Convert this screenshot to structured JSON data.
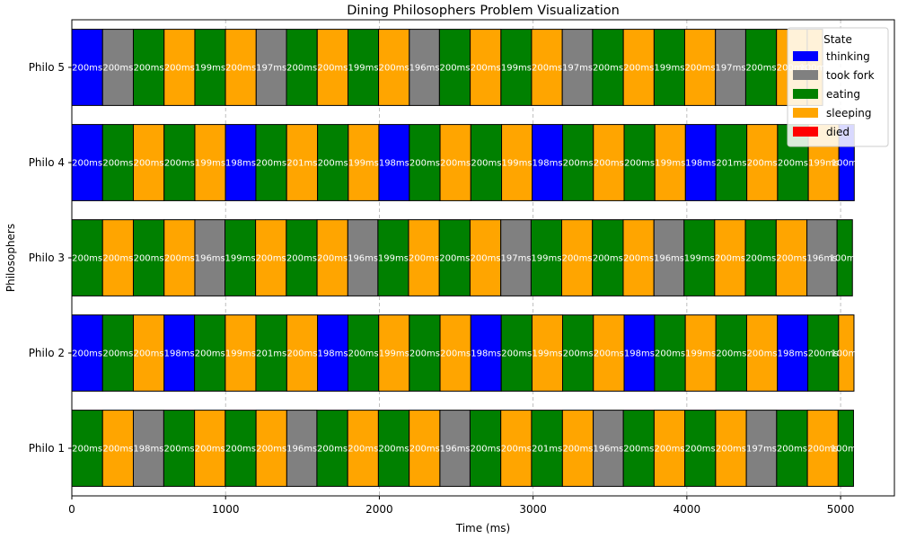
{
  "chart_data": {
    "type": "bar",
    "orientation": "horizontal-timeline",
    "title": "Dining Philosophers Problem Visualization",
    "xlabel": "Time (ms)",
    "ylabel": "Philosophers",
    "xlim": [
      0,
      5350
    ],
    "xticks": [
      0,
      1000,
      2000,
      3000,
      4000,
      5000
    ],
    "grid": "x",
    "legend": {
      "title": "State",
      "placement": "top-right",
      "entries": [
        {
          "state": "thinking",
          "label": "thinking",
          "color": "#0000ff"
        },
        {
          "state": "took fork",
          "label": "took fork",
          "color": "#808080"
        },
        {
          "state": "eating",
          "label": "eating",
          "color": "#008000"
        },
        {
          "state": "sleeping",
          "label": "sleeping",
          "color": "#ffa500"
        },
        {
          "state": "died",
          "label": "died",
          "color": "#ff0000"
        }
      ]
    },
    "series": [
      {
        "name": "Philo 5",
        "segments": [
          {
            "start": 0,
            "duration": 200,
            "state": "thinking",
            "label": "200ms"
          },
          {
            "start": 200,
            "duration": 200,
            "state": "took fork",
            "label": "200ms"
          },
          {
            "start": 400,
            "duration": 200,
            "state": "eating",
            "label": "200ms"
          },
          {
            "start": 600,
            "duration": 200,
            "state": "sleeping",
            "label": "200ms"
          },
          {
            "start": 800,
            "duration": 199,
            "state": "eating",
            "label": "199ms"
          },
          {
            "start": 999,
            "duration": 200,
            "state": "sleeping",
            "label": "200ms"
          },
          {
            "start": 1199,
            "duration": 197,
            "state": "took fork",
            "label": "197ms"
          },
          {
            "start": 1396,
            "duration": 200,
            "state": "eating",
            "label": "200ms"
          },
          {
            "start": 1596,
            "duration": 200,
            "state": "sleeping",
            "label": "200ms"
          },
          {
            "start": 1796,
            "duration": 199,
            "state": "eating",
            "label": "199ms"
          },
          {
            "start": 1995,
            "duration": 200,
            "state": "sleeping",
            "label": "200ms"
          },
          {
            "start": 2195,
            "duration": 196,
            "state": "took fork",
            "label": "196ms"
          },
          {
            "start": 2391,
            "duration": 200,
            "state": "eating",
            "label": "200ms"
          },
          {
            "start": 2591,
            "duration": 200,
            "state": "sleeping",
            "label": "200ms"
          },
          {
            "start": 2791,
            "duration": 199,
            "state": "eating",
            "label": "199ms"
          },
          {
            "start": 2990,
            "duration": 200,
            "state": "sleeping",
            "label": "200ms"
          },
          {
            "start": 3190,
            "duration": 197,
            "state": "took fork",
            "label": "197ms"
          },
          {
            "start": 3387,
            "duration": 200,
            "state": "eating",
            "label": "200ms"
          },
          {
            "start": 3587,
            "duration": 200,
            "state": "sleeping",
            "label": "200ms"
          },
          {
            "start": 3787,
            "duration": 199,
            "state": "eating",
            "label": "199ms"
          },
          {
            "start": 3986,
            "duration": 200,
            "state": "sleeping",
            "label": "200ms"
          },
          {
            "start": 4186,
            "duration": 197,
            "state": "took fork",
            "label": "197ms"
          },
          {
            "start": 4383,
            "duration": 200,
            "state": "eating",
            "label": "200ms"
          },
          {
            "start": 4583,
            "duration": 200,
            "state": "sleeping",
            "label": "200ms"
          },
          {
            "start": 4783,
            "duration": 100,
            "state": "sleeping",
            "label": "100ms"
          }
        ]
      },
      {
        "name": "Philo 4",
        "segments": [
          {
            "start": 0,
            "duration": 200,
            "state": "thinking",
            "label": "200ms"
          },
          {
            "start": 200,
            "duration": 200,
            "state": "eating",
            "label": "200ms"
          },
          {
            "start": 400,
            "duration": 200,
            "state": "sleeping",
            "label": "200ms"
          },
          {
            "start": 600,
            "duration": 200,
            "state": "eating",
            "label": "200ms"
          },
          {
            "start": 800,
            "duration": 199,
            "state": "sleeping",
            "label": "199ms"
          },
          {
            "start": 999,
            "duration": 198,
            "state": "thinking",
            "label": "198ms"
          },
          {
            "start": 1197,
            "duration": 200,
            "state": "eating",
            "label": "200ms"
          },
          {
            "start": 1397,
            "duration": 201,
            "state": "sleeping",
            "label": "201ms"
          },
          {
            "start": 1598,
            "duration": 200,
            "state": "eating",
            "label": "200ms"
          },
          {
            "start": 1798,
            "duration": 199,
            "state": "sleeping",
            "label": "199ms"
          },
          {
            "start": 1997,
            "duration": 198,
            "state": "thinking",
            "label": "198ms"
          },
          {
            "start": 2195,
            "duration": 200,
            "state": "eating",
            "label": "200ms"
          },
          {
            "start": 2395,
            "duration": 200,
            "state": "sleeping",
            "label": "200ms"
          },
          {
            "start": 2595,
            "duration": 200,
            "state": "eating",
            "label": "200ms"
          },
          {
            "start": 2795,
            "duration": 199,
            "state": "sleeping",
            "label": "199ms"
          },
          {
            "start": 2994,
            "duration": 198,
            "state": "thinking",
            "label": "198ms"
          },
          {
            "start": 3192,
            "duration": 200,
            "state": "eating",
            "label": "200ms"
          },
          {
            "start": 3392,
            "duration": 200,
            "state": "sleeping",
            "label": "200ms"
          },
          {
            "start": 3592,
            "duration": 200,
            "state": "eating",
            "label": "200ms"
          },
          {
            "start": 3792,
            "duration": 199,
            "state": "sleeping",
            "label": "199ms"
          },
          {
            "start": 3991,
            "duration": 198,
            "state": "thinking",
            "label": "198ms"
          },
          {
            "start": 4189,
            "duration": 201,
            "state": "eating",
            "label": "201ms"
          },
          {
            "start": 4390,
            "duration": 200,
            "state": "sleeping",
            "label": "200ms"
          },
          {
            "start": 4590,
            "duration": 200,
            "state": "eating",
            "label": "200ms"
          },
          {
            "start": 4790,
            "duration": 199,
            "state": "sleeping",
            "label": "199ms"
          },
          {
            "start": 4989,
            "duration": 100,
            "state": "thinking",
            "label": "100ms"
          }
        ]
      },
      {
        "name": "Philo 3",
        "segments": [
          {
            "start": 0,
            "duration": 200,
            "state": "eating",
            "label": "200ms"
          },
          {
            "start": 200,
            "duration": 200,
            "state": "sleeping",
            "label": "200ms"
          },
          {
            "start": 400,
            "duration": 200,
            "state": "eating",
            "label": "200ms"
          },
          {
            "start": 600,
            "duration": 200,
            "state": "sleeping",
            "label": "200ms"
          },
          {
            "start": 800,
            "duration": 196,
            "state": "took fork",
            "label": "196ms"
          },
          {
            "start": 996,
            "duration": 199,
            "state": "eating",
            "label": "199ms"
          },
          {
            "start": 1195,
            "duration": 200,
            "state": "sleeping",
            "label": "200ms"
          },
          {
            "start": 1395,
            "duration": 200,
            "state": "eating",
            "label": "200ms"
          },
          {
            "start": 1595,
            "duration": 200,
            "state": "sleeping",
            "label": "200ms"
          },
          {
            "start": 1795,
            "duration": 196,
            "state": "took fork",
            "label": "196ms"
          },
          {
            "start": 1991,
            "duration": 199,
            "state": "eating",
            "label": "199ms"
          },
          {
            "start": 2190,
            "duration": 200,
            "state": "sleeping",
            "label": "200ms"
          },
          {
            "start": 2390,
            "duration": 200,
            "state": "eating",
            "label": "200ms"
          },
          {
            "start": 2590,
            "duration": 200,
            "state": "sleeping",
            "label": "200ms"
          },
          {
            "start": 2790,
            "duration": 197,
            "state": "took fork",
            "label": "197ms"
          },
          {
            "start": 2987,
            "duration": 199,
            "state": "eating",
            "label": "199ms"
          },
          {
            "start": 3186,
            "duration": 200,
            "state": "sleeping",
            "label": "200ms"
          },
          {
            "start": 3386,
            "duration": 200,
            "state": "eating",
            "label": "200ms"
          },
          {
            "start": 3586,
            "duration": 200,
            "state": "sleeping",
            "label": "200ms"
          },
          {
            "start": 3786,
            "duration": 196,
            "state": "took fork",
            "label": "196ms"
          },
          {
            "start": 3982,
            "duration": 199,
            "state": "eating",
            "label": "199ms"
          },
          {
            "start": 4181,
            "duration": 200,
            "state": "sleeping",
            "label": "200ms"
          },
          {
            "start": 4381,
            "duration": 200,
            "state": "eating",
            "label": "200ms"
          },
          {
            "start": 4581,
            "duration": 200,
            "state": "sleeping",
            "label": "200ms"
          },
          {
            "start": 4781,
            "duration": 196,
            "state": "took fork",
            "label": "196ms"
          },
          {
            "start": 4977,
            "duration": 100,
            "state": "eating",
            "label": "100ms"
          }
        ]
      },
      {
        "name": "Philo 2",
        "segments": [
          {
            "start": 0,
            "duration": 200,
            "state": "thinking",
            "label": "200ms"
          },
          {
            "start": 200,
            "duration": 200,
            "state": "eating",
            "label": "200ms"
          },
          {
            "start": 400,
            "duration": 200,
            "state": "sleeping",
            "label": "200ms"
          },
          {
            "start": 600,
            "duration": 198,
            "state": "thinking",
            "label": "198ms"
          },
          {
            "start": 798,
            "duration": 200,
            "state": "eating",
            "label": "200ms"
          },
          {
            "start": 998,
            "duration": 199,
            "state": "sleeping",
            "label": "199ms"
          },
          {
            "start": 1197,
            "duration": 201,
            "state": "eating",
            "label": "201ms"
          },
          {
            "start": 1398,
            "duration": 200,
            "state": "sleeping",
            "label": "200ms"
          },
          {
            "start": 1598,
            "duration": 198,
            "state": "thinking",
            "label": "198ms"
          },
          {
            "start": 1796,
            "duration": 200,
            "state": "eating",
            "label": "200ms"
          },
          {
            "start": 1996,
            "duration": 199,
            "state": "sleeping",
            "label": "199ms"
          },
          {
            "start": 2195,
            "duration": 200,
            "state": "eating",
            "label": "200ms"
          },
          {
            "start": 2395,
            "duration": 200,
            "state": "sleeping",
            "label": "200ms"
          },
          {
            "start": 2595,
            "duration": 198,
            "state": "thinking",
            "label": "198ms"
          },
          {
            "start": 2793,
            "duration": 200,
            "state": "eating",
            "label": "200ms"
          },
          {
            "start": 2993,
            "duration": 199,
            "state": "sleeping",
            "label": "199ms"
          },
          {
            "start": 3192,
            "duration": 200,
            "state": "eating",
            "label": "200ms"
          },
          {
            "start": 3392,
            "duration": 200,
            "state": "sleeping",
            "label": "200ms"
          },
          {
            "start": 3592,
            "duration": 198,
            "state": "thinking",
            "label": "198ms"
          },
          {
            "start": 3790,
            "duration": 200,
            "state": "eating",
            "label": "200ms"
          },
          {
            "start": 3990,
            "duration": 199,
            "state": "sleeping",
            "label": "199ms"
          },
          {
            "start": 4189,
            "duration": 200,
            "state": "eating",
            "label": "200ms"
          },
          {
            "start": 4389,
            "duration": 200,
            "state": "sleeping",
            "label": "200ms"
          },
          {
            "start": 4589,
            "duration": 198,
            "state": "thinking",
            "label": "198ms"
          },
          {
            "start": 4787,
            "duration": 200,
            "state": "eating",
            "label": "200ms"
          },
          {
            "start": 4987,
            "duration": 100,
            "state": "sleeping",
            "label": "100ms"
          }
        ]
      },
      {
        "name": "Philo 1",
        "segments": [
          {
            "start": 0,
            "duration": 200,
            "state": "eating",
            "label": "200ms"
          },
          {
            "start": 200,
            "duration": 200,
            "state": "sleeping",
            "label": "200ms"
          },
          {
            "start": 400,
            "duration": 198,
            "state": "took fork",
            "label": "198ms"
          },
          {
            "start": 598,
            "duration": 200,
            "state": "eating",
            "label": "200ms"
          },
          {
            "start": 798,
            "duration": 200,
            "state": "sleeping",
            "label": "200ms"
          },
          {
            "start": 998,
            "duration": 200,
            "state": "eating",
            "label": "200ms"
          },
          {
            "start": 1198,
            "duration": 200,
            "state": "sleeping",
            "label": "200ms"
          },
          {
            "start": 1398,
            "duration": 196,
            "state": "took fork",
            "label": "196ms"
          },
          {
            "start": 1594,
            "duration": 200,
            "state": "eating",
            "label": "200ms"
          },
          {
            "start": 1794,
            "duration": 200,
            "state": "sleeping",
            "label": "200ms"
          },
          {
            "start": 1994,
            "duration": 200,
            "state": "eating",
            "label": "200ms"
          },
          {
            "start": 2194,
            "duration": 200,
            "state": "sleeping",
            "label": "200ms"
          },
          {
            "start": 2394,
            "duration": 196,
            "state": "took fork",
            "label": "196ms"
          },
          {
            "start": 2590,
            "duration": 200,
            "state": "eating",
            "label": "200ms"
          },
          {
            "start": 2790,
            "duration": 200,
            "state": "sleeping",
            "label": "200ms"
          },
          {
            "start": 2990,
            "duration": 201,
            "state": "eating",
            "label": "201ms"
          },
          {
            "start": 3191,
            "duration": 200,
            "state": "sleeping",
            "label": "200ms"
          },
          {
            "start": 3391,
            "duration": 196,
            "state": "took fork",
            "label": "196ms"
          },
          {
            "start": 3587,
            "duration": 200,
            "state": "eating",
            "label": "200ms"
          },
          {
            "start": 3787,
            "duration": 200,
            "state": "sleeping",
            "label": "200ms"
          },
          {
            "start": 3987,
            "duration": 200,
            "state": "eating",
            "label": "200ms"
          },
          {
            "start": 4187,
            "duration": 200,
            "state": "sleeping",
            "label": "200ms"
          },
          {
            "start": 4387,
            "duration": 197,
            "state": "took fork",
            "label": "197ms"
          },
          {
            "start": 4584,
            "duration": 200,
            "state": "eating",
            "label": "200ms"
          },
          {
            "start": 4784,
            "duration": 200,
            "state": "sleeping",
            "label": "200ms"
          },
          {
            "start": 4984,
            "duration": 100,
            "state": "eating",
            "label": "100ms"
          }
        ]
      }
    ]
  }
}
